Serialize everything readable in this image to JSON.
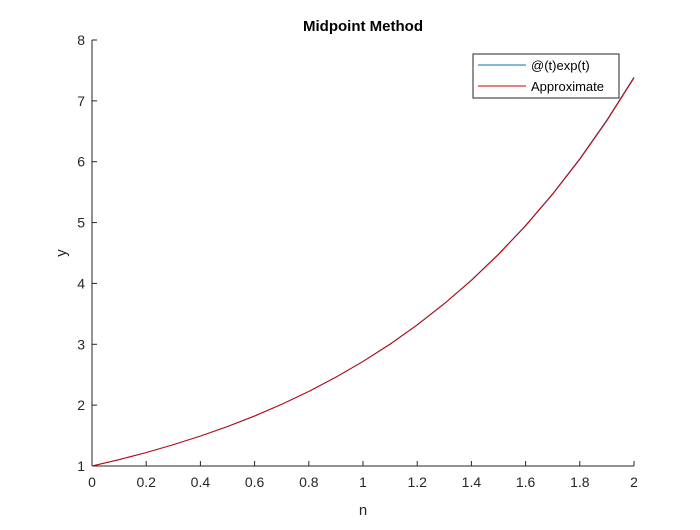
{
  "chart_data": {
    "type": "line",
    "title": "Midpoint Method",
    "xlabel": "n",
    "ylabel": "y",
    "xlim": [
      0,
      2
    ],
    "ylim": [
      1,
      8
    ],
    "xticks": [
      0,
      0.2,
      0.4,
      0.6,
      0.8,
      1,
      1.2,
      1.4,
      1.6,
      1.8,
      2
    ],
    "xtick_labels": [
      "0",
      "0.2",
      "0.4",
      "0.6",
      "0.8",
      "1",
      "1.2",
      "1.4",
      "1.6",
      "1.8",
      "2"
    ],
    "yticks": [
      1,
      2,
      3,
      4,
      5,
      6,
      7,
      8
    ],
    "ytick_labels": [
      "1",
      "2",
      "3",
      "4",
      "5",
      "6",
      "7",
      "8"
    ],
    "grid": false,
    "legend_position": "top-right",
    "x": [
      0,
      0.1,
      0.2,
      0.3,
      0.4,
      0.5,
      0.6,
      0.7,
      0.8,
      0.9,
      1.0,
      1.1,
      1.2,
      1.3,
      1.4,
      1.5,
      1.6,
      1.7,
      1.8,
      1.9,
      2.0
    ],
    "series": [
      {
        "name": "@(t)exp(t)",
        "color": "#0072BD",
        "values": [
          1.0,
          1.105,
          1.221,
          1.35,
          1.492,
          1.649,
          1.822,
          2.014,
          2.226,
          2.46,
          2.718,
          3.004,
          3.32,
          3.669,
          4.055,
          4.482,
          4.953,
          5.474,
          6.05,
          6.686,
          7.389
        ]
      },
      {
        "name": "Approximate",
        "color": "#D00000",
        "values": [
          1.0,
          1.105,
          1.221,
          1.35,
          1.492,
          1.648,
          1.822,
          2.013,
          2.225,
          2.459,
          2.717,
          3.002,
          3.317,
          3.666,
          4.051,
          4.476,
          4.946,
          5.466,
          6.04,
          6.674,
          7.375
        ]
      }
    ]
  }
}
